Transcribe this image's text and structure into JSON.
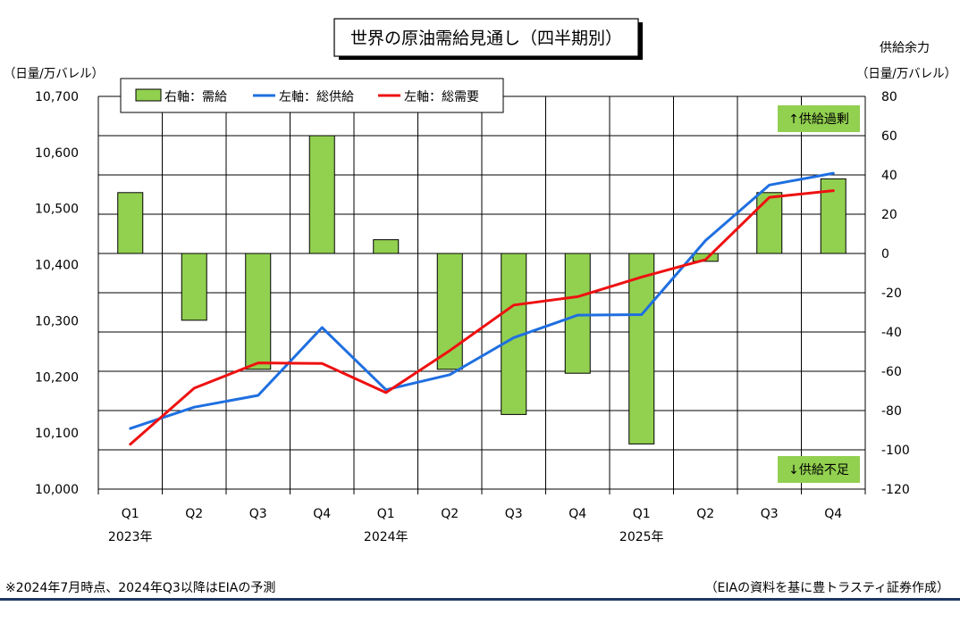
{
  "chart_data": {
    "type": "bar",
    "title": "世界の原油需給見通し（四半期別）",
    "left_axis_unit": "（日量/万バレル）",
    "right_axis_title": "供給余力",
    "right_axis_unit": "（日量/万バレル）",
    "left_ylim": [
      10000,
      10700
    ],
    "left_ticks": [
      "10,000",
      "10,100",
      "10,200",
      "10,300",
      "10,400",
      "10,500",
      "10,600",
      "10,700"
    ],
    "right_ylim": [
      -120,
      80
    ],
    "right_ticks": [
      "-120",
      "-100",
      "-80",
      "-60",
      "-40",
      "-20",
      "0",
      "20",
      "40",
      "60",
      "80"
    ],
    "categories": [
      "Q1",
      "Q2",
      "Q3",
      "Q4",
      "Q1",
      "Q2",
      "Q3",
      "Q4",
      "Q1",
      "Q2",
      "Q3",
      "Q4"
    ],
    "year_labels": [
      {
        "label": "2023年",
        "index": 0
      },
      {
        "label": "2024年",
        "index": 4
      },
      {
        "label": "2025年",
        "index": 8
      }
    ],
    "grid": true,
    "legend_position": "top-left",
    "series": [
      {
        "name": "右軸：需給",
        "kind": "bar",
        "axis": "right",
        "color": "#92d050",
        "values": [
          31,
          -34,
          -59,
          60,
          7,
          -59,
          -82,
          -61,
          -97,
          -4,
          31,
          38
        ]
      },
      {
        "name": "左軸：総供給",
        "kind": "line",
        "axis": "left",
        "color": "#1f6fe0",
        "values": [
          10108,
          10146,
          10167,
          10288,
          10177,
          10204,
          10270,
          10310,
          10311,
          10443,
          10542,
          10563
        ]
      },
      {
        "name": "左軸：総需要",
        "kind": "line",
        "axis": "left",
        "color": "#ee1111",
        "values": [
          10080,
          10180,
          10225,
          10224,
          10172,
          10247,
          10328,
          10343,
          10378,
          10409,
          10520,
          10532
        ]
      }
    ],
    "annotations": {
      "surplus": "↑供給過剰",
      "deficit": "↓供給不足"
    }
  },
  "footer": {
    "note": "※2024年7月時点、2024年Q3以降はEIAの予測",
    "source": "（EIAの資料を基に豊トラスティ証券作成）"
  }
}
